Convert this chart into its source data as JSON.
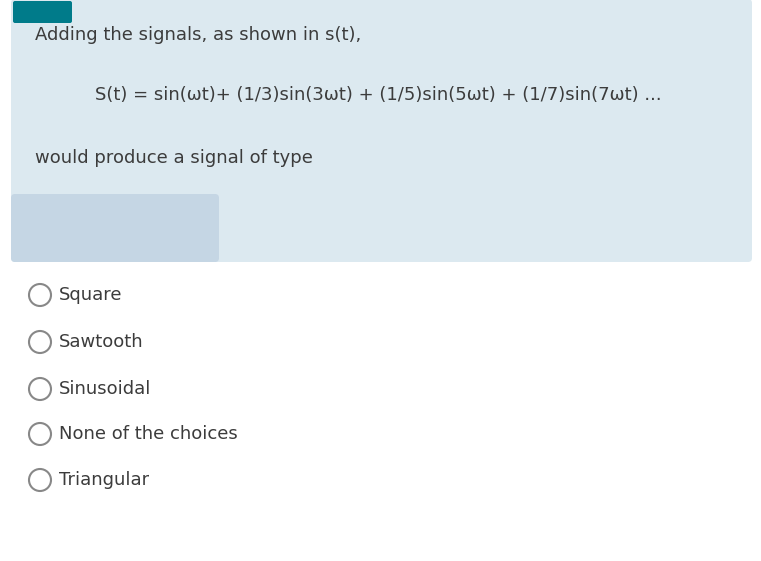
{
  "question_box_bg": "#dce9f0",
  "question_box_bg2": "#c5d6e4",
  "white_bg": "#ffffff",
  "teal_bar_color": "#007b8a",
  "line1": "Adding the signals, as shown in s(t),",
  "line2": "S(t) = sin(ωt)+ (1/3)sin(3ωt) + (1/5)sin(5ωt) + (1/7)sin(7ωt) ...",
  "line3": "would produce a signal of type",
  "choices": [
    "Square",
    "Sawtooth",
    "Sinusoidal",
    "None of the choices",
    "Triangular"
  ],
  "main_text_color": "#3c3c3c",
  "text_fontsize": 13.0,
  "choice_fontsize": 13.0,
  "circle_edge_color": "#888888",
  "circle_face_color": "#ffffff",
  "figsize": [
    7.61,
    5.61
  ],
  "dpi": 100
}
